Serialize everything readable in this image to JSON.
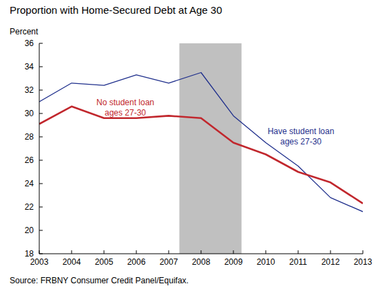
{
  "chart_data": {
    "type": "line",
    "title": "Proportion with Home-Secured Debt at Age 30",
    "y_label": "Percent",
    "source": "Source: FRBNY Consumer Credit Panel/Equifax.",
    "x": [
      2003,
      2004,
      2005,
      2006,
      2007,
      2008,
      2009,
      2010,
      2011,
      2012,
      2013
    ],
    "series": [
      {
        "name": "Have student loan",
        "annotation": "ages 27-30",
        "color": "#1f2f8c",
        "values": [
          31.0,
          32.6,
          32.4,
          33.3,
          32.6,
          33.5,
          29.8,
          27.5,
          25.5,
          22.8,
          21.6
        ]
      },
      {
        "name": "No student loan",
        "annotation": "ages 27-30",
        "color": "#c1272d",
        "values": [
          29.1,
          30.6,
          29.6,
          29.6,
          29.8,
          29.6,
          27.5,
          26.5,
          25.0,
          24.1,
          22.3
        ]
      }
    ],
    "shaded": {
      "start": 2007.33,
      "end": 2009.25,
      "color": "#c0c0c0"
    },
    "xlim": [
      2003,
      2013
    ],
    "xticks": [
      2003,
      2004,
      2005,
      2006,
      2007,
      2008,
      2009,
      2010,
      2011,
      2012,
      2013
    ],
    "ylim": [
      18,
      36
    ],
    "yticks": [
      18,
      20,
      22,
      24,
      26,
      28,
      30,
      32,
      34,
      36
    ],
    "grid": false
  }
}
